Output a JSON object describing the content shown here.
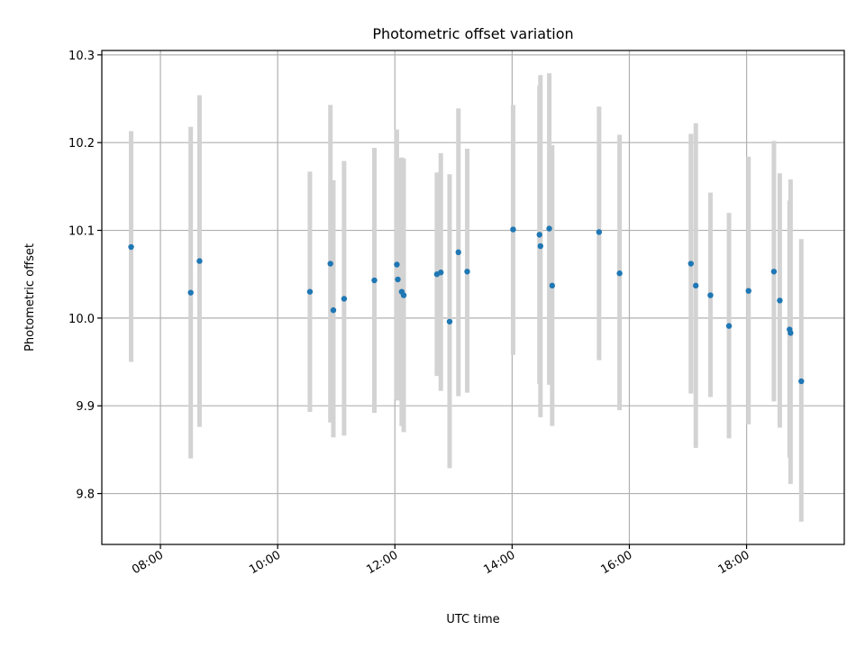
{
  "chart_data": {
    "type": "scatter",
    "title": "Photometric offset variation",
    "xlabel": "UTC time",
    "ylabel": "Photometric offset",
    "x_is_time": true,
    "xlim": [
      "07:00",
      "19:40"
    ],
    "ylim": [
      9.742,
      10.305
    ],
    "x_ticks": [
      "08:00",
      "10:00",
      "12:00",
      "14:00",
      "16:00",
      "18:00"
    ],
    "y_ticks": [
      "9.8",
      "9.9",
      "10.0",
      "10.1",
      "10.2",
      "10.3"
    ],
    "grid": true,
    "colors": {
      "point": "#1f77b4",
      "errorbar": "#d3d3d3",
      "grid": "#b0b0b0"
    },
    "points": [
      {
        "x": "07:30",
        "y": 10.081,
        "ylo": 9.95,
        "yhi": 10.213
      },
      {
        "x": "08:31",
        "y": 10.029,
        "ylo": 9.84,
        "yhi": 10.218
      },
      {
        "x": "08:40",
        "y": 10.065,
        "ylo": 9.876,
        "yhi": 10.254
      },
      {
        "x": "10:33",
        "y": 10.03,
        "ylo": 9.893,
        "yhi": 10.167
      },
      {
        "x": "10:54",
        "y": 10.062,
        "ylo": 9.881,
        "yhi": 10.243
      },
      {
        "x": "10:57",
        "y": 10.009,
        "ylo": 9.864,
        "yhi": 10.157
      },
      {
        "x": "11:08",
        "y": 10.022,
        "ylo": 9.866,
        "yhi": 10.179
      },
      {
        "x": "11:39",
        "y": 10.043,
        "ylo": 9.892,
        "yhi": 10.194
      },
      {
        "x": "12:02",
        "y": 10.061,
        "ylo": 9.907,
        "yhi": 10.215
      },
      {
        "x": "12:03",
        "y": 10.044,
        "ylo": 9.906,
        "yhi": 10.182
      },
      {
        "x": "12:07",
        "y": 10.03,
        "ylo": 9.877,
        "yhi": 10.183
      },
      {
        "x": "12:09",
        "y": 10.026,
        "ylo": 9.87,
        "yhi": 10.182
      },
      {
        "x": "12:43",
        "y": 10.05,
        "ylo": 9.934,
        "yhi": 10.166
      },
      {
        "x": "12:47",
        "y": 10.052,
        "ylo": 9.917,
        "yhi": 10.188
      },
      {
        "x": "12:56",
        "y": 9.996,
        "ylo": 9.829,
        "yhi": 10.164
      },
      {
        "x": "13:05",
        "y": 10.075,
        "ylo": 9.911,
        "yhi": 10.239
      },
      {
        "x": "13:14",
        "y": 10.053,
        "ylo": 9.915,
        "yhi": 10.193
      },
      {
        "x": "14:01",
        "y": 10.101,
        "ylo": 9.958,
        "yhi": 10.243
      },
      {
        "x": "14:28",
        "y": 10.095,
        "ylo": 9.925,
        "yhi": 10.265
      },
      {
        "x": "14:29",
        "y": 10.082,
        "ylo": 9.887,
        "yhi": 10.277
      },
      {
        "x": "14:38",
        "y": 10.102,
        "ylo": 9.924,
        "yhi": 10.279
      },
      {
        "x": "14:41",
        "y": 10.037,
        "ylo": 9.877,
        "yhi": 10.197
      },
      {
        "x": "15:29",
        "y": 10.098,
        "ylo": 9.952,
        "yhi": 10.241
      },
      {
        "x": "15:50",
        "y": 10.051,
        "ylo": 9.895,
        "yhi": 10.209
      },
      {
        "x": "17:03",
        "y": 10.062,
        "ylo": 9.914,
        "yhi": 10.21
      },
      {
        "x": "17:08",
        "y": 10.037,
        "ylo": 9.852,
        "yhi": 10.222
      },
      {
        "x": "17:23",
        "y": 10.026,
        "ylo": 9.91,
        "yhi": 10.143
      },
      {
        "x": "17:42",
        "y": 9.991,
        "ylo": 9.863,
        "yhi": 10.12
      },
      {
        "x": "18:02",
        "y": 10.031,
        "ylo": 9.879,
        "yhi": 10.184
      },
      {
        "x": "18:28",
        "y": 10.053,
        "ylo": 9.905,
        "yhi": 10.202
      },
      {
        "x": "18:34",
        "y": 10.02,
        "ylo": 9.875,
        "yhi": 10.165
      },
      {
        "x": "18:44",
        "y": 9.987,
        "ylo": 9.841,
        "yhi": 10.134
      },
      {
        "x": "18:45",
        "y": 9.983,
        "ylo": 9.811,
        "yhi": 10.158
      },
      {
        "x": "18:56",
        "y": 9.928,
        "ylo": 9.768,
        "yhi": 10.09
      }
    ]
  }
}
